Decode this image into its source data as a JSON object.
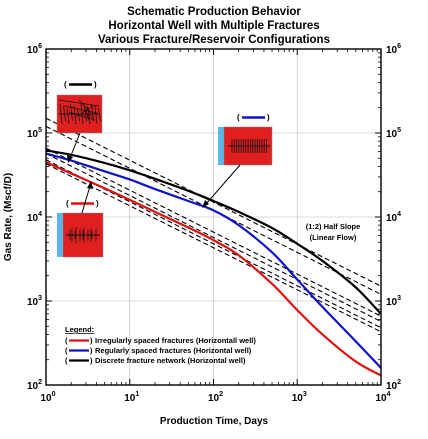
{
  "chart_data": {
    "type": "line",
    "title": [
      "Schematic Production Behavior",
      "Horizontal Well with Multiple Fractures",
      "Various Fracture/Reservoir Configurations"
    ],
    "xlabel": "Production Time, Days",
    "ylabel": "Gas Rate, (Mscf/D)",
    "x_scale": "log",
    "y_scale": "log",
    "xlim": [
      1,
      10000
    ],
    "ylim": [
      100,
      1000000
    ],
    "x_ticks": [
      {
        "value": 1,
        "base": "10",
        "exp": "0"
      },
      {
        "value": 10,
        "base": "10",
        "exp": "1"
      },
      {
        "value": 100,
        "base": "10",
        "exp": "2"
      },
      {
        "value": 1000,
        "base": "10",
        "exp": "3"
      },
      {
        "value": 10000,
        "base": "10",
        "exp": "4"
      }
    ],
    "y_ticks": [
      {
        "value": 100,
        "base": "10",
        "exp": "2"
      },
      {
        "value": 1000,
        "base": "10",
        "exp": "3"
      },
      {
        "value": 10000,
        "base": "10",
        "exp": "4"
      },
      {
        "value": 100000,
        "base": "10",
        "exp": "5"
      },
      {
        "value": 1000000,
        "base": "10",
        "exp": "6"
      }
    ],
    "grid": true,
    "series": [
      {
        "name": "Irregularly spaced fractures (Horizontall well)",
        "color": "#dd1111",
        "points": [
          [
            1,
            45000
          ],
          [
            2,
            33000
          ],
          [
            5,
            22000
          ],
          [
            10,
            16000
          ],
          [
            20,
            11500
          ],
          [
            50,
            7500
          ],
          [
            100,
            5300
          ],
          [
            200,
            3500
          ],
          [
            500,
            1600
          ],
          [
            1000,
            780
          ],
          [
            2000,
            400
          ],
          [
            5000,
            190
          ],
          [
            10000,
            130
          ]
        ]
      },
      {
        "name": "Regularly spaced fractures (Horizontal well)",
        "color": "#1111cc",
        "points": [
          [
            1,
            57000
          ],
          [
            2,
            47000
          ],
          [
            5,
            35000
          ],
          [
            10,
            28000
          ],
          [
            20,
            21500
          ],
          [
            50,
            15500
          ],
          [
            100,
            12000
          ],
          [
            200,
            8000
          ],
          [
            500,
            3800
          ],
          [
            1000,
            1800
          ],
          [
            2000,
            850
          ],
          [
            5000,
            330
          ],
          [
            10000,
            160
          ]
        ]
      },
      {
        "name": "Discrete fracture network (Horizontal well)",
        "color": "#000000",
        "points": [
          [
            1,
            62000
          ],
          [
            2,
            55000
          ],
          [
            5,
            44000
          ],
          [
            10,
            36000
          ],
          [
            20,
            28500
          ],
          [
            50,
            20500
          ],
          [
            100,
            15500
          ],
          [
            200,
            11500
          ],
          [
            500,
            7400
          ],
          [
            1000,
            4800
          ],
          [
            2000,
            3000
          ],
          [
            5000,
            1450
          ],
          [
            10000,
            700
          ]
        ]
      }
    ],
    "reference_lines": [
      {
        "style": "dashed",
        "points": [
          [
            1,
            150000
          ],
          [
            10000,
            1500
          ]
        ]
      },
      {
        "style": "dashed",
        "points": [
          [
            1,
            120000
          ],
          [
            10000,
            1200
          ]
        ]
      },
      {
        "style": "dashed",
        "points": [
          [
            1,
            66000
          ],
          [
            10000,
            660
          ]
        ]
      },
      {
        "style": "dashed",
        "points": [
          [
            1,
            57000
          ],
          [
            10000,
            570
          ]
        ]
      },
      {
        "style": "dashed",
        "points": [
          [
            1,
            48000
          ],
          [
            10000,
            480
          ]
        ]
      },
      {
        "style": "dashed",
        "points": [
          [
            1,
            43000
          ],
          [
            10000,
            430
          ]
        ]
      }
    ],
    "annotations": [
      {
        "text": [
          "(1:2) Half Slope",
          "(Linear Flow)"
        ]
      }
    ],
    "legend": {
      "placement": "bottom-left",
      "title": "Legend:",
      "entries": [
        {
          "paren_open": "(",
          "paren_close": ")",
          "color": "#dd1111",
          "label": "Irregularly spaced fractures (Horizontall well)"
        },
        {
          "paren_open": "(",
          "paren_close": ")",
          "color": "#1111cc",
          "label": "Regularly spaced fractures (Horizontal well)"
        },
        {
          "paren_open": "(",
          "paren_close": ")",
          "color": "#000000",
          "label": "Discrete fracture network (Horizontal well)"
        }
      ]
    },
    "insets": [
      {
        "id": "discrete",
        "line_color": "#000000",
        "pattern": "network",
        "paren_open": "(",
        "paren_close": ")"
      },
      {
        "id": "regular",
        "line_color": "#1111cc",
        "pattern": "regular",
        "paren_open": "(",
        "paren_close": ")"
      },
      {
        "id": "irregular",
        "line_color": "#dd1111",
        "pattern": "irregular",
        "paren_open": "(",
        "paren_close": ")"
      }
    ]
  }
}
